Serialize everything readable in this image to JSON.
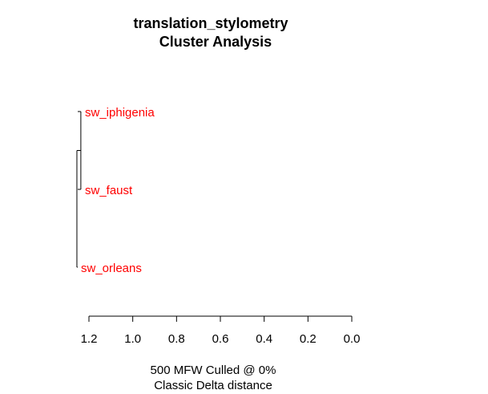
{
  "chart_data": {
    "type": "dendrogram",
    "title": "translation_stylometry",
    "subtitle": "Cluster Analysis",
    "xlabel_line1": "500 MFW  Culled @ 0%",
    "xlabel_line2": "Classic Delta distance",
    "orientation": "horizontal",
    "axis_reversed": true,
    "xlim": [
      0,
      1.2
    ],
    "ticks": [
      1.2,
      1.0,
      0.8,
      0.6,
      0.4,
      0.2,
      0.0
    ],
    "tick_labels": [
      "1.2",
      "1.0",
      "0.8",
      "0.6",
      "0.4",
      "0.2",
      "0.0"
    ],
    "leaves": [
      {
        "name": "sw_iphigenia",
        "color": "#ff0000"
      },
      {
        "name": "sw_faust",
        "color": "#ff0000"
      },
      {
        "name": "sw_orleans",
        "color": "#ff0000"
      }
    ],
    "merges": [
      {
        "members": [
          "sw_iphigenia",
          "sw_faust"
        ],
        "height": 1.237
      },
      {
        "members": [
          "sw_iphigenia",
          "sw_faust",
          "sw_orleans"
        ],
        "height": 1.255
      }
    ],
    "colors": {
      "leaf_label": "#ff0000",
      "line": "#000000"
    }
  }
}
